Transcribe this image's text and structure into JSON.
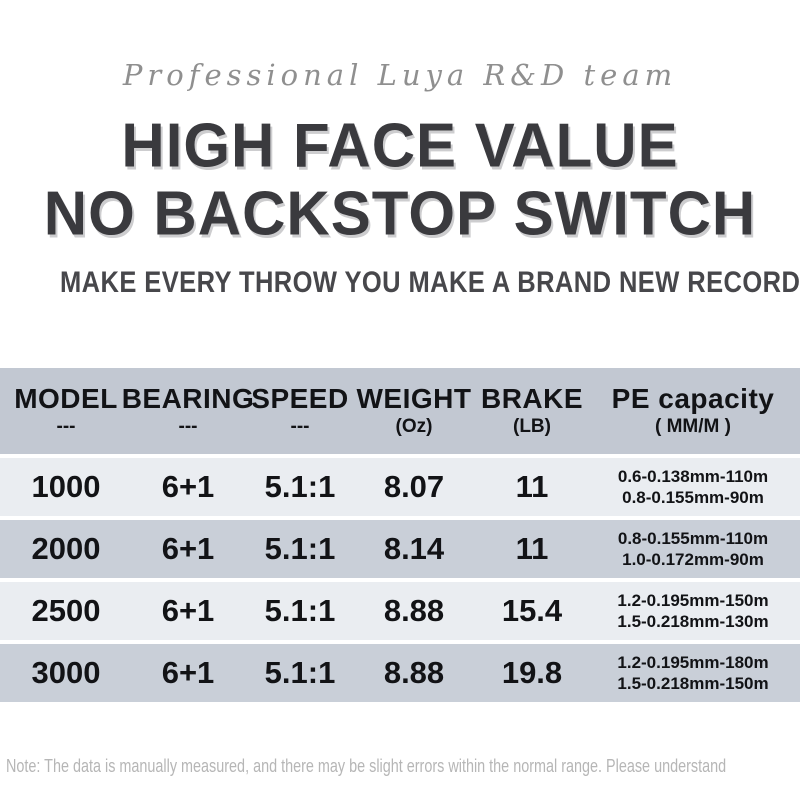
{
  "brand": {
    "tagline": "Professional Luya R&D team"
  },
  "hero": {
    "title_line1": "HIGH FACE VALUE",
    "title_line2": "NO BACKSTOP SWITCH",
    "subtitle": "MAKE EVERY THROW YOU MAKE A BRAND NEW RECORD"
  },
  "table": {
    "columns": [
      {
        "label": "MODEL",
        "sub": "---"
      },
      {
        "label": "BEARING",
        "sub": "---"
      },
      {
        "label": "SPEED",
        "sub": "---"
      },
      {
        "label": "WEIGHT",
        "sub": "(Oz)"
      },
      {
        "label": "BRAKE",
        "sub": "(LB)"
      },
      {
        "label": "PE capacity",
        "sub": "( MM/M )"
      }
    ],
    "rows": [
      {
        "model": "1000",
        "bearing": "6+1",
        "speed": "5.1:1",
        "weight": "8.07",
        "brake": "11",
        "pe_line1": "0.6-0.138mm-110m",
        "pe_line2": "0.8-0.155mm-90m"
      },
      {
        "model": "2000",
        "bearing": "6+1",
        "speed": "5.1:1",
        "weight": "8.14",
        "brake": "11",
        "pe_line1": "0.8-0.155mm-110m",
        "pe_line2": "1.0-0.172mm-90m"
      },
      {
        "model": "2500",
        "bearing": "6+1",
        "speed": "5.1:1",
        "weight": "8.88",
        "brake": "15.4",
        "pe_line1": "1.2-0.195mm-150m",
        "pe_line2": "1.5-0.218mm-130m"
      },
      {
        "model": "3000",
        "bearing": "6+1",
        "speed": "5.1:1",
        "weight": "8.88",
        "brake": "19.8",
        "pe_line1": "1.2-0.195mm-180m",
        "pe_line2": "1.5-0.218mm-150m"
      }
    ]
  },
  "footer": {
    "note": "Note: The data is manually measured, and there may be slight errors within the normal range. Please understand"
  },
  "colors": {
    "header_bg": "#c2c8d2",
    "row_dark_bg": "#c9cfd8",
    "row_light_bg": "#eaedf1",
    "title": "#3a3a3e",
    "subtitle": "#47474b",
    "tagline": "#8f8f8f",
    "cell_text": "#121316",
    "note": "#b6b6b6"
  }
}
